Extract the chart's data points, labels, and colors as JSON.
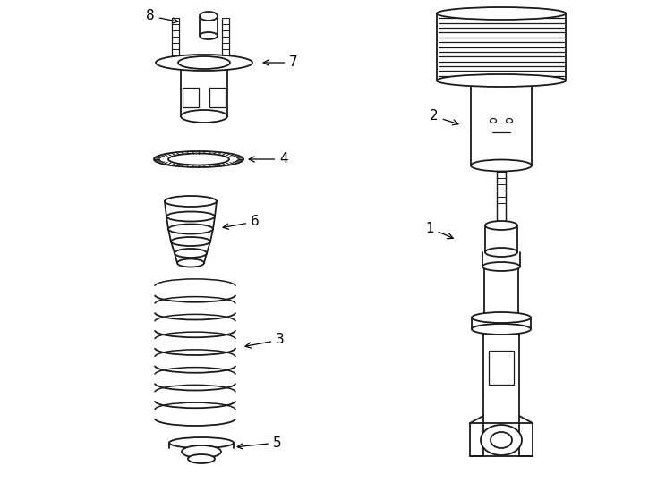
{
  "background_color": "#ffffff",
  "line_color": "#1a1a1a",
  "line_width": 1.3,
  "fig_width": 7.34,
  "fig_height": 5.4,
  "dpi": 100
}
